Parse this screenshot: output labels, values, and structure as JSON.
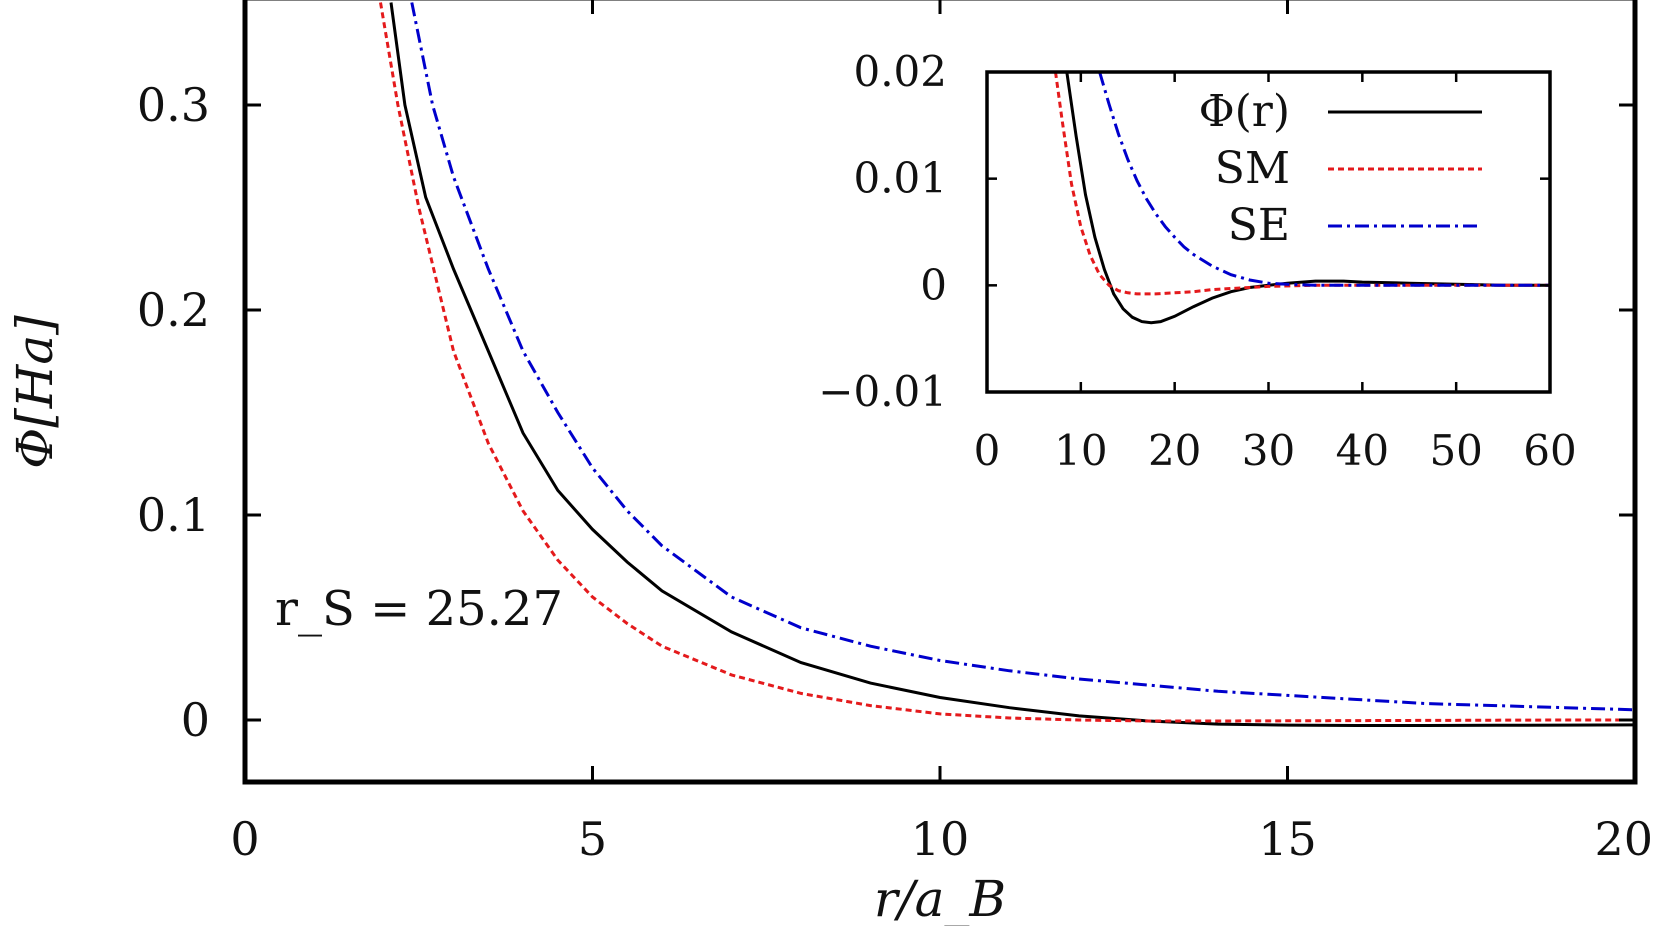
{
  "chart_data": [
    {
      "type": "line",
      "xlabel": "r/a_B",
      "ylabel": "Φ[Ha]",
      "xlim": [
        0,
        20
      ],
      "ylim": [
        -0.03,
        0.35
      ],
      "xticks": [
        "0",
        "5",
        "10",
        "15",
        "20"
      ],
      "yticks": [
        "0",
        "0.1",
        "0.2",
        "0.3"
      ],
      "annotation": "r_S = 25.27",
      "series": [
        {
          "name": "Φ(r)",
          "color": "#000000",
          "style": "solid",
          "x": [
            2.1,
            2.3,
            2.6,
            3.0,
            3.5,
            4.0,
            4.5,
            5.0,
            5.5,
            6.0,
            7.0,
            8.0,
            9.0,
            10.0,
            11.0,
            12.0,
            13.0,
            14.0,
            15.0,
            16.0,
            17.0,
            18.0,
            19.0,
            20.0
          ],
          "y": [
            0.35,
            0.3,
            0.255,
            0.22,
            0.18,
            0.14,
            0.112,
            0.093,
            0.077,
            0.063,
            0.043,
            0.028,
            0.018,
            0.011,
            0.006,
            0.002,
            -0.0005,
            -0.002,
            -0.0025,
            -0.0027,
            -0.0027,
            -0.0026,
            -0.0025,
            -0.0024
          ]
        },
        {
          "name": "SM",
          "color": "#e41a1c",
          "style": "dashed",
          "x": [
            1.95,
            2.2,
            2.5,
            3.0,
            3.5,
            4.0,
            4.5,
            5.0,
            5.5,
            6.0,
            7.0,
            8.0,
            9.0,
            10.0,
            11.0,
            12.0,
            13.0,
            14.0,
            15.0,
            16.0,
            17.0,
            18.0,
            19.0,
            20.0
          ],
          "y": [
            0.35,
            0.3,
            0.25,
            0.18,
            0.135,
            0.102,
            0.078,
            0.06,
            0.047,
            0.036,
            0.022,
            0.013,
            0.007,
            0.003,
            0.001,
            0.0,
            -0.0005,
            -0.0005,
            -0.0004,
            -0.0003,
            -0.0002,
            -0.0001,
            0.0,
            0.0
          ]
        },
        {
          "name": "SE",
          "color": "#0000cc",
          "style": "dashdot",
          "x": [
            2.4,
            2.7,
            3.0,
            3.5,
            4.0,
            4.5,
            5.0,
            5.5,
            6.0,
            7.0,
            8.0,
            9.0,
            10.0,
            11.0,
            12.0,
            13.0,
            14.0,
            15.0,
            16.0,
            17.0,
            18.0,
            19.0,
            20.0
          ],
          "y": [
            0.35,
            0.3,
            0.265,
            0.22,
            0.18,
            0.15,
            0.123,
            0.102,
            0.085,
            0.06,
            0.045,
            0.036,
            0.029,
            0.024,
            0.02,
            0.017,
            0.014,
            0.012,
            0.01,
            0.008,
            0.007,
            0.006,
            0.005
          ]
        }
      ]
    },
    {
      "type": "line",
      "inset": true,
      "xlim": [
        0,
        60
      ],
      "ylim": [
        -0.01,
        0.02
      ],
      "xticks": [
        "0",
        "10",
        "20",
        "30",
        "40",
        "50",
        "60"
      ],
      "yticks": [
        "−0.01",
        "0",
        "0.01",
        "0.02"
      ],
      "legend": [
        "Φ(r)",
        "SM",
        "SE"
      ],
      "series": [
        {
          "name": "Φ(r)",
          "color": "#000000",
          "style": "solid",
          "x": [
            8.5,
            9.5,
            10.5,
            11.5,
            12.5,
            13.5,
            14.5,
            15.5,
            16.5,
            17.5,
            18.5,
            20,
            22,
            24,
            26,
            28,
            30,
            32,
            35,
            38,
            40,
            45,
            50,
            55,
            60
          ],
          "y": [
            0.02,
            0.014,
            0.0085,
            0.0045,
            0.0015,
            -0.0008,
            -0.0022,
            -0.003,
            -0.0034,
            -0.0035,
            -0.0034,
            -0.0029,
            -0.002,
            -0.0012,
            -0.0006,
            -0.0002,
            0.0,
            0.0002,
            0.0004,
            0.0004,
            0.0003,
            0.0002,
            0.0001,
            0.0,
            0.0
          ]
        },
        {
          "name": "SM",
          "color": "#e41a1c",
          "style": "dashed",
          "x": [
            7.3,
            8.0,
            9.0,
            10.0,
            11.0,
            12.0,
            13.0,
            14.0,
            15.0,
            16.0,
            17.0,
            18.0,
            20,
            22,
            24,
            26,
            28,
            30,
            35,
            40,
            50,
            60
          ],
          "y": [
            0.02,
            0.0155,
            0.0095,
            0.0055,
            0.0028,
            0.001,
            0.0,
            -0.0005,
            -0.0007,
            -0.0008,
            -0.0008,
            -0.0008,
            -0.0007,
            -0.0006,
            -0.0004,
            -0.0003,
            -0.0002,
            -0.0001,
            0.0,
            0.0,
            0.0,
            0.0
          ]
        },
        {
          "name": "SE",
          "color": "#0000cc",
          "style": "dashdot",
          "x": [
            12.0,
            13.0,
            14.0,
            15.0,
            16.0,
            17.0,
            18.0,
            19.0,
            20.0,
            21.0,
            22.0,
            24.0,
            26.0,
            28.0,
            30.0,
            32.0,
            35.0,
            40.0,
            45.0,
            50.0,
            55.0,
            60.0
          ],
          "y": [
            0.02,
            0.017,
            0.0142,
            0.0118,
            0.0098,
            0.0081,
            0.0067,
            0.0055,
            0.0045,
            0.0036,
            0.0029,
            0.0018,
            0.001,
            0.0005,
            0.0002,
            0.0001,
            0.0,
            0.0,
            0.0,
            0.0,
            0.0,
            0.0
          ]
        }
      ]
    }
  ]
}
